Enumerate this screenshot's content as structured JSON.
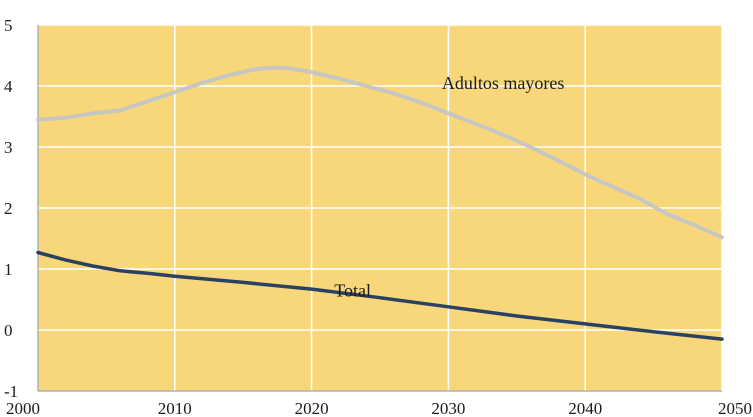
{
  "chart_data": {
    "type": "line",
    "title": "",
    "xlabel": "",
    "ylabel": "",
    "xlim": [
      2000,
      2050
    ],
    "ylim": [
      -1,
      5
    ],
    "xticks": [
      "2000",
      "2010",
      "2020",
      "2030",
      "2040",
      "2050"
    ],
    "yticks": [
      "-1",
      "0",
      "1",
      "2",
      "3",
      "4",
      "5"
    ],
    "grid": true,
    "legend": "none",
    "colors": {
      "plot_background": "#f8d77a",
      "grid": "#ffffff",
      "adultos_mayores": "#c6c6c2",
      "total": "#2a4163"
    },
    "series": [
      {
        "name": "Adultos mayores",
        "color": "#c6c6c2",
        "x": [
          2000,
          2002,
          2004,
          2006,
          2008,
          2010,
          2012,
          2014,
          2016,
          2017,
          2018,
          2020,
          2022,
          2024,
          2026,
          2028,
          2030,
          2032,
          2034,
          2036,
          2038,
          2040,
          2042,
          2044,
          2046,
          2048,
          2050
        ],
        "y": [
          3.45,
          3.48,
          3.55,
          3.6,
          3.75,
          3.9,
          4.05,
          4.18,
          4.28,
          4.3,
          4.3,
          4.23,
          4.12,
          4.0,
          3.88,
          3.73,
          3.55,
          3.38,
          3.2,
          3.0,
          2.78,
          2.55,
          2.35,
          2.15,
          1.9,
          1.72,
          1.52
        ]
      },
      {
        "name": "Total",
        "color": "#2a4163",
        "x": [
          2000,
          2002,
          2004,
          2006,
          2008,
          2010,
          2015,
          2020,
          2025,
          2030,
          2035,
          2040,
          2045,
          2050
        ],
        "y": [
          1.27,
          1.15,
          1.05,
          0.97,
          0.93,
          0.88,
          0.78,
          0.67,
          0.53,
          0.38,
          0.23,
          0.1,
          -0.03,
          -0.15
        ]
      }
    ],
    "annotations": [
      {
        "text": "Adultos mayores",
        "x": 2034,
        "y": 3.95
      },
      {
        "text": "Total",
        "x": 2023,
        "y": 0.55
      }
    ]
  }
}
